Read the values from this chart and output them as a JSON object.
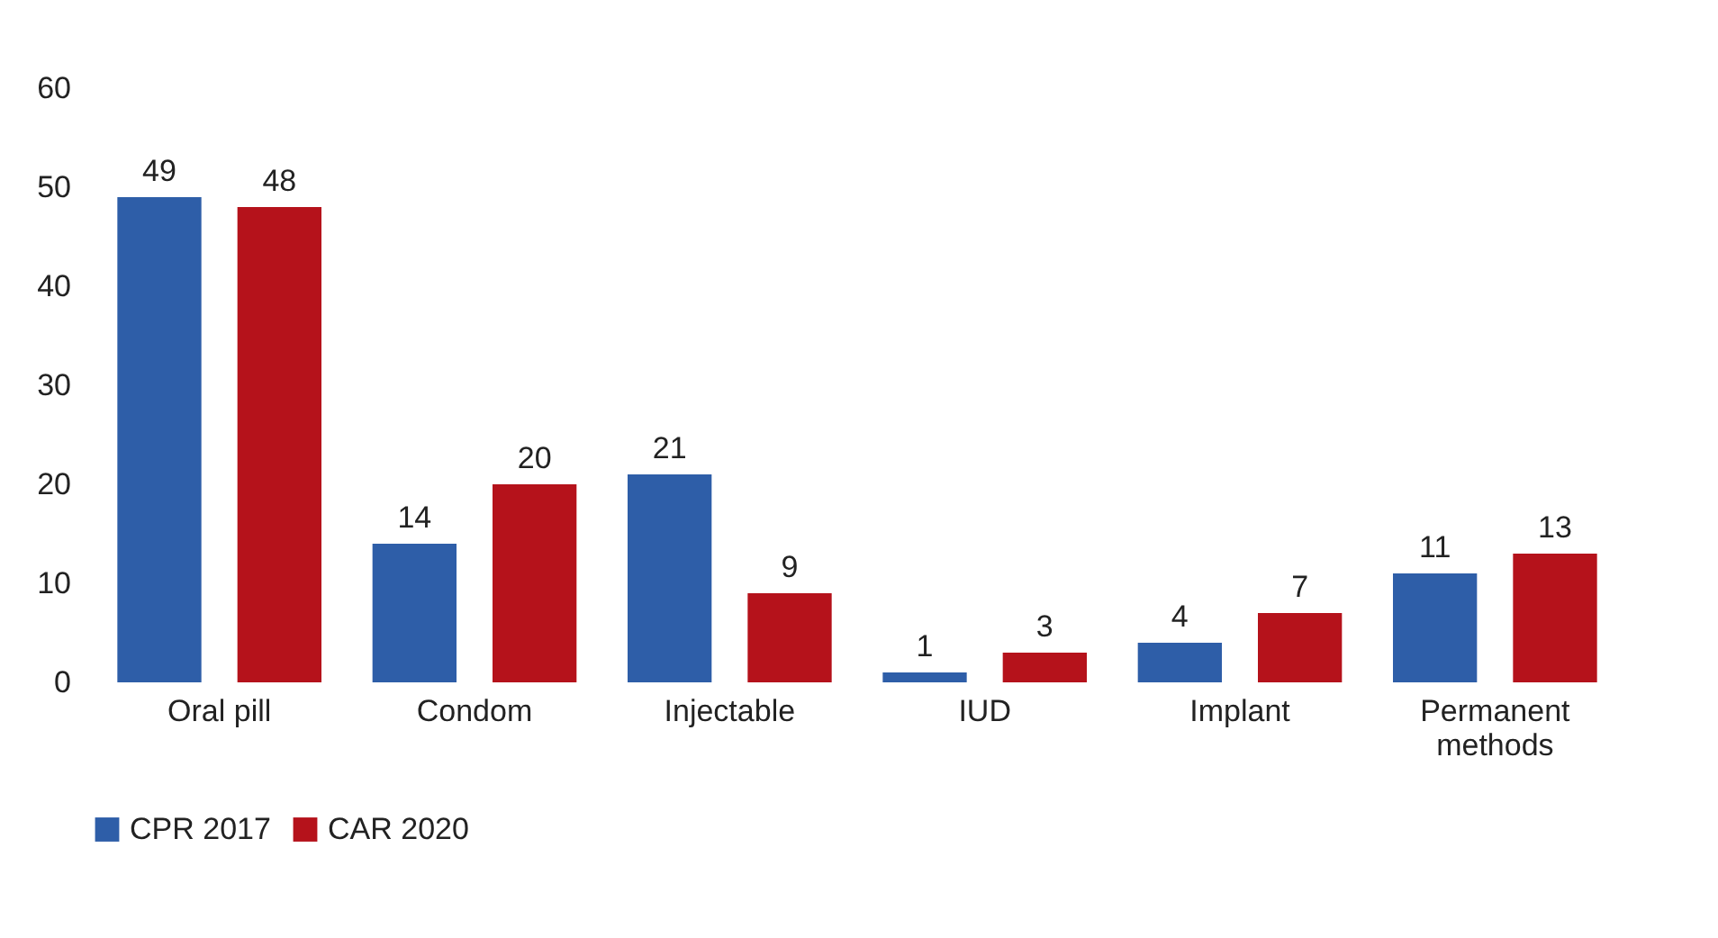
{
  "chart_data": {
    "type": "bar",
    "categories": [
      "Oral pill",
      "Condom",
      "Injectable",
      "IUD",
      "Implant",
      "Permanent methods"
    ],
    "series": [
      {
        "name": "CPR 2017",
        "color": "#2e5ea8",
        "values": [
          49,
          14,
          21,
          1,
          4,
          11
        ]
      },
      {
        "name": "CAR 2020",
        "color": "#b5121b",
        "values": [
          48,
          20,
          9,
          3,
          7,
          13
        ]
      }
    ],
    "ylim": [
      0,
      60
    ],
    "yticks": [
      0,
      10,
      20,
      30,
      40,
      50,
      60
    ],
    "grid": false,
    "legend": "bottom",
    "data_labels": true
  }
}
